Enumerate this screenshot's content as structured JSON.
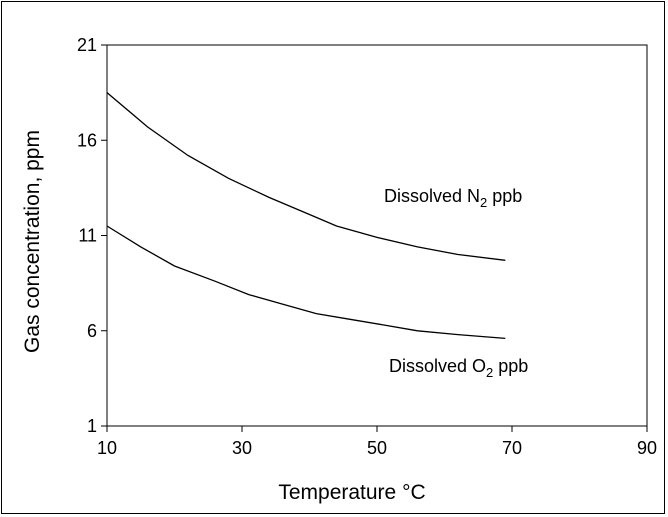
{
  "chart_data": {
    "type": "line",
    "title": "",
    "xlabel": "Temperature °C",
    "ylabel": "Gas concentration, ppm",
    "xlim": [
      10,
      90
    ],
    "ylim": [
      1,
      21
    ],
    "xticks": [
      10,
      30,
      50,
      70,
      90
    ],
    "yticks": [
      1,
      6,
      11,
      16,
      21
    ],
    "grid": false,
    "legend": "none",
    "series": [
      {
        "name": "Dissolved N2 ppb",
        "label_main": "Dissolved N",
        "label_sub": "2",
        "label_tail": " ppb",
        "color": "#000000",
        "x": [
          10,
          16,
          22,
          28,
          34,
          40,
          44,
          50,
          56,
          62,
          69
        ],
        "y": [
          18.5,
          16.7,
          15.2,
          14.0,
          13.0,
          12.1,
          11.5,
          10.9,
          10.4,
          10.0,
          9.7
        ]
      },
      {
        "name": "Dissolved O2 ppb",
        "label_main": "Dissolved O",
        "label_sub": "2",
        "label_tail": " ppb",
        "color": "#000000",
        "x": [
          10,
          15,
          20,
          26,
          31,
          36,
          41,
          46,
          51,
          56,
          62,
          69
        ],
        "y": [
          11.5,
          10.4,
          9.4,
          8.6,
          7.9,
          7.4,
          6.9,
          6.6,
          6.3,
          6.0,
          5.8,
          5.6
        ]
      }
    ]
  }
}
